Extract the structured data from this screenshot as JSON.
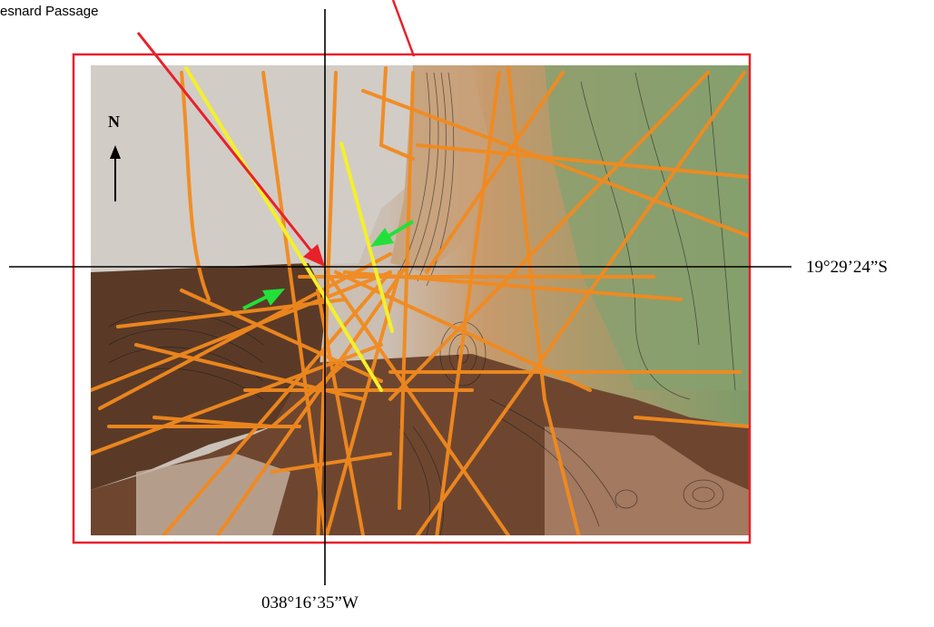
{
  "labels": {
    "passage_label": "esnard Passage",
    "north_label": "N",
    "latitude_label": "19°29’24”S",
    "longitude_label": "038°16’35”W"
  },
  "colors": {
    "frame": "#e8202a",
    "pointer_arrow": "#e8202a",
    "track_orange": "#f28a1e",
    "track_yellow": "#f4f02a",
    "green_arrow": "#22e03a",
    "crosshair": "#000000"
  },
  "map": {
    "icons": [
      "north-arrow-icon",
      "green-arrow-icon",
      "pointer-arrow-icon"
    ]
  }
}
